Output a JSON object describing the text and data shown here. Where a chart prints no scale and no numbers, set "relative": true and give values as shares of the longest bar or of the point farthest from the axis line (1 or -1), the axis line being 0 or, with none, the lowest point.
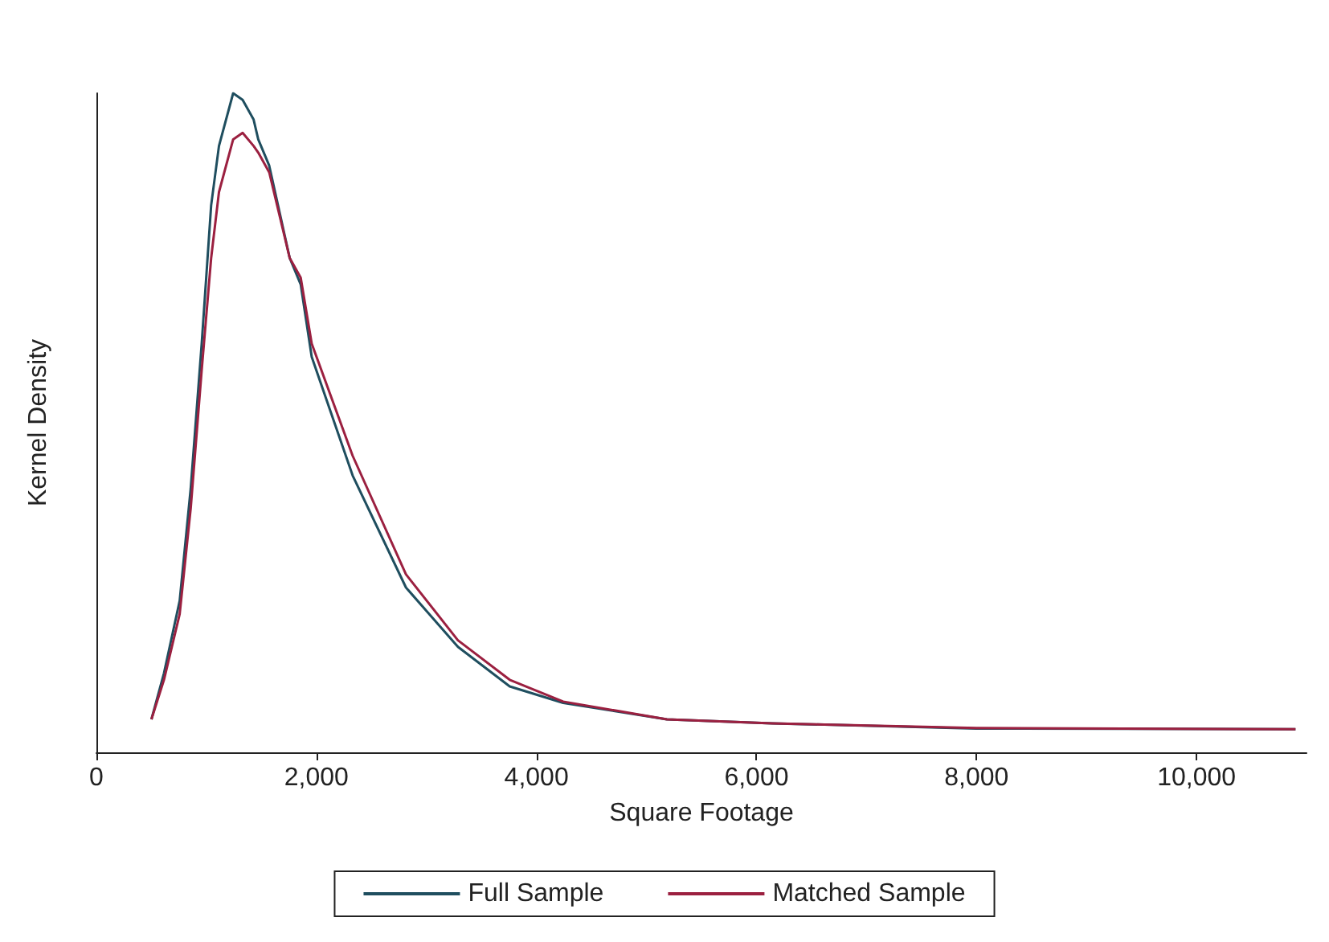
{
  "chart_data": {
    "type": "line",
    "xlabel": "Square Footage",
    "ylabel": "Kernel Density",
    "relative": true,
    "xlim": [
      0,
      11000
    ],
    "xticks": [
      {
        "value": 0,
        "label": "0"
      },
      {
        "value": 2000,
        "label": "2,000"
      },
      {
        "value": 4000,
        "label": "4,000"
      },
      {
        "value": 6000,
        "label": "6,000"
      },
      {
        "value": 8000,
        "label": "8,000"
      },
      {
        "value": 10000,
        "label": "10,000"
      }
    ],
    "x": [
      500,
      614,
      757,
      857,
      957,
      1043,
      1114,
      1243,
      1329,
      1429,
      1471,
      1571,
      1757,
      1857,
      1957,
      2329,
      2814,
      3286,
      3757,
      4243,
      5186,
      6143,
      8000,
      10900
    ],
    "series": [
      {
        "name": "Full Sample",
        "color": "#1f4e5f",
        "values": [
          0.05,
          0.12,
          0.23,
          0.4,
          0.62,
          0.83,
          0.92,
          1,
          0.99,
          0.96,
          0.93,
          0.89,
          0.75,
          0.71,
          0.6,
          0.42,
          0.25,
          0.16,
          0.1,
          0.075,
          0.05,
          0.044,
          0.036,
          0.035
        ]
      },
      {
        "name": "Matched Sample",
        "color": "#9b2040",
        "values": [
          0.05,
          0.11,
          0.21,
          0.37,
          0.58,
          0.75,
          0.85,
          0.93,
          0.94,
          0.92,
          0.91,
          0.88,
          0.75,
          0.72,
          0.62,
          0.45,
          0.27,
          0.17,
          0.11,
          0.077,
          0.05,
          0.044,
          0.037,
          0.035
        ]
      }
    ],
    "legend": "bottom",
    "grid": false,
    "marker": "none",
    "line_style": "solid",
    "tick_labels": "x"
  }
}
